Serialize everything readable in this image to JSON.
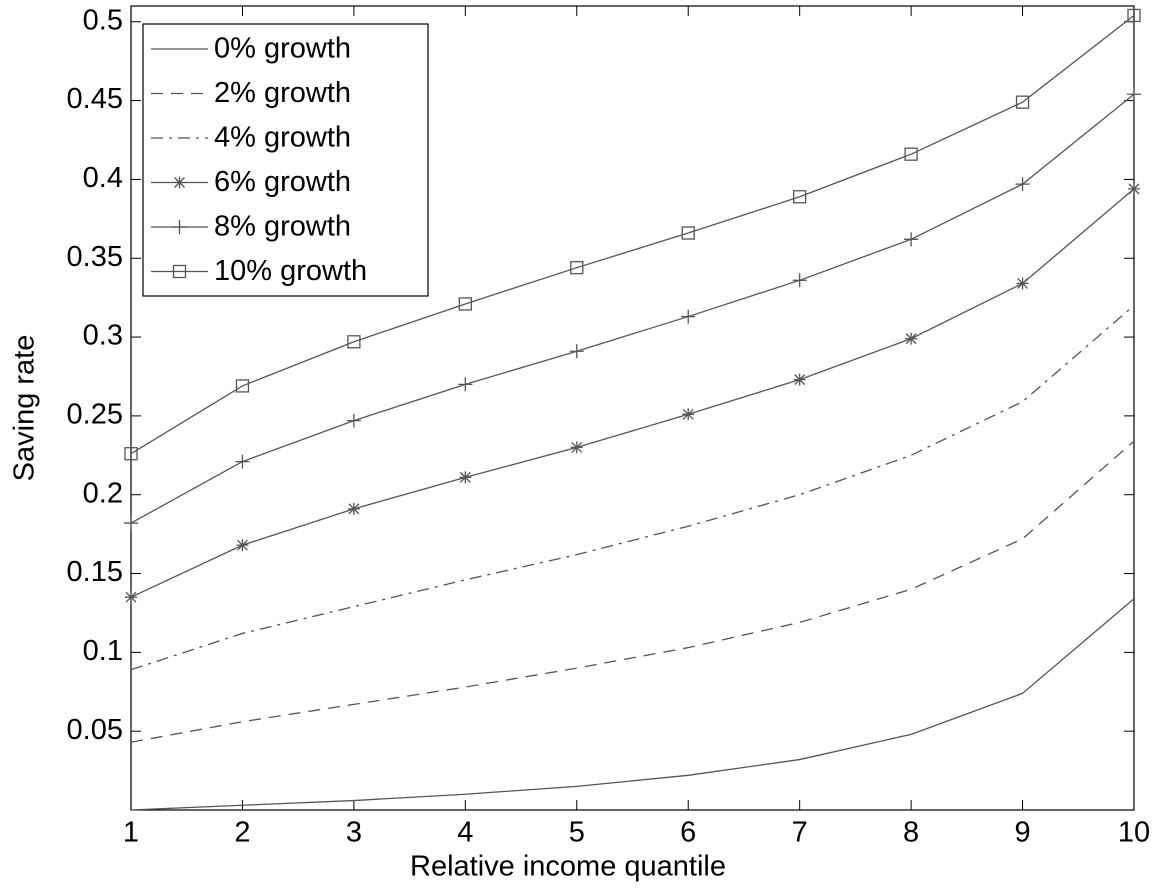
{
  "chart_data": {
    "type": "line",
    "xlabel": "Relative income quantile",
    "ylabel": "Saving rate",
    "x": [
      1,
      2,
      3,
      4,
      5,
      6,
      7,
      8,
      9,
      10
    ],
    "xlim": [
      1,
      10
    ],
    "xticks": [
      1,
      2,
      3,
      4,
      5,
      6,
      7,
      8,
      9,
      10
    ],
    "ylim": [
      0,
      0.51
    ],
    "yticks": [
      0.05,
      0.1,
      0.15,
      0.2,
      0.25,
      0.3,
      0.35,
      0.4,
      0.45,
      0.5
    ],
    "grid": false,
    "legend": "upper-left",
    "series": [
      {
        "name": "0% growth",
        "color": "#555555",
        "style": "solid",
        "marker": "none",
        "values": [
          0.0,
          0.003,
          0.006,
          0.01,
          0.015,
          0.022,
          0.032,
          0.048,
          0.074,
          0.134
        ]
      },
      {
        "name": "2% growth",
        "color": "#555555",
        "style": "dashed",
        "marker": "none",
        "values": [
          0.043,
          0.056,
          0.067,
          0.078,
          0.09,
          0.103,
          0.119,
          0.14,
          0.172,
          0.234
        ]
      },
      {
        "name": "4% growth",
        "color": "#555555",
        "style": "dashdot",
        "marker": "none",
        "values": [
          0.089,
          0.112,
          0.129,
          0.146,
          0.162,
          0.18,
          0.2,
          0.225,
          0.259,
          0.32
        ]
      },
      {
        "name": "6% growth",
        "color": "#555555",
        "style": "solid",
        "marker": "star",
        "values": [
          0.135,
          0.168,
          0.191,
          0.211,
          0.23,
          0.251,
          0.273,
          0.299,
          0.334,
          0.394
        ]
      },
      {
        "name": "8% growth",
        "color": "#555555",
        "style": "solid",
        "marker": "plus",
        "values": [
          0.182,
          0.221,
          0.247,
          0.27,
          0.291,
          0.313,
          0.336,
          0.362,
          0.397,
          0.454
        ]
      },
      {
        "name": "10% growth",
        "color": "#555555",
        "style": "solid",
        "marker": "square",
        "values": [
          0.226,
          0.269,
          0.297,
          0.321,
          0.344,
          0.366,
          0.389,
          0.416,
          0.449,
          0.504
        ]
      }
    ]
  }
}
